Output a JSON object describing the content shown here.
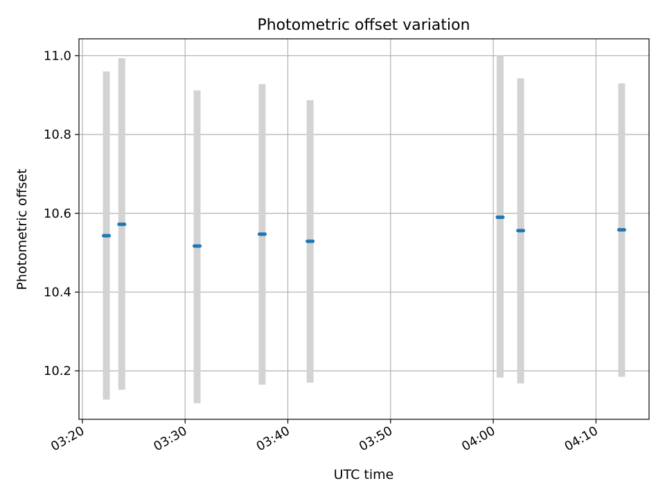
{
  "chart_data": {
    "type": "scatter",
    "title": "Photometric offset variation",
    "xlabel": "UTC time",
    "ylabel": "Photometric offset",
    "x_is_time": true,
    "xlim": [
      "03:19:40",
      "04:15:10"
    ],
    "ylim": [
      10.077,
      11.043
    ],
    "x_ticks": [
      "03:20",
      "03:30",
      "03:40",
      "03:50",
      "04:00",
      "04:10"
    ],
    "y_ticks": [
      10.2,
      10.4,
      10.6,
      10.8,
      11.0
    ],
    "y_tick_labels": [
      "10.2",
      "10.4",
      "10.6",
      "10.8",
      "11.0"
    ],
    "grid": true,
    "point_color": "#1f77b4",
    "errorbar_color": "#d3d3d3",
    "points": [
      {
        "x": "03:22:20",
        "y": 10.543,
        "ylow": 10.127,
        "yhigh": 10.96
      },
      {
        "x": "03:23:50",
        "y": 10.572,
        "ylow": 10.152,
        "yhigh": 10.994
      },
      {
        "x": "03:31:10",
        "y": 10.517,
        "ylow": 10.118,
        "yhigh": 10.912
      },
      {
        "x": "03:37:30",
        "y": 10.547,
        "ylow": 10.165,
        "yhigh": 10.928
      },
      {
        "x": "03:42:10",
        "y": 10.529,
        "ylow": 10.17,
        "yhigh": 10.887
      },
      {
        "x": "04:00:40",
        "y": 10.59,
        "ylow": 10.183,
        "yhigh": 11.0
      },
      {
        "x": "04:02:40",
        "y": 10.556,
        "ylow": 10.168,
        "yhigh": 10.943
      },
      {
        "x": "04:12:30",
        "y": 10.558,
        "ylow": 10.185,
        "yhigh": 10.93
      }
    ]
  }
}
